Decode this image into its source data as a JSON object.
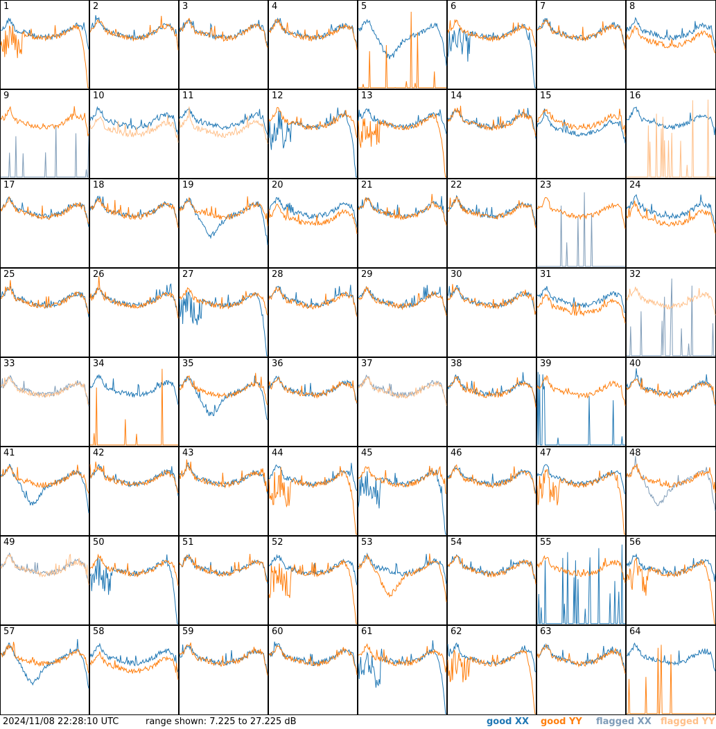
{
  "chart_data": {
    "type": "line",
    "layout": "grid of spectra, 8 columns x 8 rows",
    "series_legend": [
      {
        "name": "good XX",
        "color": "#1f77b4"
      },
      {
        "name": "good YY",
        "color": "#ff7f0e"
      },
      {
        "name": "flagged XX",
        "color": "#7f9cb8"
      },
      {
        "name": "flagged YY",
        "color": "#ffc08a"
      }
    ],
    "y_range_db": [
      7.225,
      27.225
    ],
    "panels": [
      {
        "label": "1",
        "xx": "good",
        "yy": "good",
        "xx_shape": "normal",
        "yy_shape": "droop"
      },
      {
        "label": "2",
        "xx": "good",
        "yy": "good",
        "xx_shape": "normal",
        "yy_shape": "normal"
      },
      {
        "label": "3",
        "xx": "good",
        "yy": "good",
        "xx_shape": "normal",
        "yy_shape": "normal"
      },
      {
        "label": "4",
        "xx": "good",
        "yy": "good",
        "xx_shape": "normal",
        "yy_shape": "normal"
      },
      {
        "label": "5",
        "xx": "good",
        "yy": "good",
        "xx_shape": "dip",
        "yy_shape": "dead"
      },
      {
        "label": "6",
        "xx": "good",
        "yy": "good",
        "xx_shape": "droop",
        "yy_shape": "normal"
      },
      {
        "label": "7",
        "xx": "good",
        "yy": "good",
        "xx_shape": "normal",
        "yy_shape": "normal"
      },
      {
        "label": "8",
        "xx": "good",
        "yy": "good",
        "xx_shape": "normal",
        "yy_shape": "low"
      },
      {
        "label": "9",
        "xx": "flagged",
        "yy": "good",
        "xx_shape": "dead",
        "yy_shape": "normal"
      },
      {
        "label": "10",
        "xx": "good",
        "yy": "flagged",
        "xx_shape": "normal",
        "yy_shape": "low"
      },
      {
        "label": "11",
        "xx": "good",
        "yy": "flagged",
        "xx_shape": "normal",
        "yy_shape": "low"
      },
      {
        "label": "12",
        "xx": "good",
        "yy": "good",
        "xx_shape": "droop",
        "yy_shape": "normal"
      },
      {
        "label": "13",
        "xx": "good",
        "yy": "good",
        "xx_shape": "normal",
        "yy_shape": "droop"
      },
      {
        "label": "14",
        "xx": "good",
        "yy": "good",
        "xx_shape": "normal",
        "yy_shape": "normal"
      },
      {
        "label": "15",
        "xx": "good",
        "yy": "good",
        "xx_shape": "low",
        "yy_shape": "normal"
      },
      {
        "label": "16",
        "xx": "good",
        "yy": "flagged",
        "xx_shape": "normal",
        "yy_shape": "dead"
      },
      {
        "label": "17",
        "xx": "good",
        "yy": "good",
        "xx_shape": "normal",
        "yy_shape": "normal"
      },
      {
        "label": "18",
        "xx": "good",
        "yy": "good",
        "xx_shape": "normal",
        "yy_shape": "normal"
      },
      {
        "label": "19",
        "xx": "good",
        "yy": "good",
        "xx_shape": "dip",
        "yy_shape": "normal"
      },
      {
        "label": "20",
        "xx": "good",
        "yy": "good",
        "xx_shape": "normal",
        "yy_shape": "low"
      },
      {
        "label": "21",
        "xx": "good",
        "yy": "good",
        "xx_shape": "normal",
        "yy_shape": "normal"
      },
      {
        "label": "22",
        "xx": "good",
        "yy": "good",
        "xx_shape": "normal",
        "yy_shape": "normal"
      },
      {
        "label": "23",
        "xx": "flagged",
        "yy": "good",
        "xx_shape": "dead",
        "yy_shape": "normal"
      },
      {
        "label": "24",
        "xx": "good",
        "yy": "good",
        "xx_shape": "normal",
        "yy_shape": "low"
      },
      {
        "label": "25",
        "xx": "good",
        "yy": "good",
        "xx_shape": "normal",
        "yy_shape": "normal"
      },
      {
        "label": "26",
        "xx": "good",
        "yy": "good",
        "xx_shape": "normal",
        "yy_shape": "normal"
      },
      {
        "label": "27",
        "xx": "good",
        "yy": "good",
        "xx_shape": "droop",
        "yy_shape": "normal"
      },
      {
        "label": "28",
        "xx": "good",
        "yy": "good",
        "xx_shape": "normal",
        "yy_shape": "normal"
      },
      {
        "label": "29",
        "xx": "good",
        "yy": "good",
        "xx_shape": "normal",
        "yy_shape": "normal"
      },
      {
        "label": "30",
        "xx": "good",
        "yy": "good",
        "xx_shape": "normal",
        "yy_shape": "normal"
      },
      {
        "label": "31",
        "xx": "good",
        "yy": "good",
        "xx_shape": "normal",
        "yy_shape": "low"
      },
      {
        "label": "32",
        "xx": "flagged",
        "yy": "flagged",
        "xx_shape": "dead",
        "yy_shape": "normal"
      },
      {
        "label": "33",
        "xx": "flagged",
        "yy": "flagged",
        "xx_shape": "normal",
        "yy_shape": "normal"
      },
      {
        "label": "34",
        "xx": "good",
        "yy": "good",
        "xx_shape": "normal",
        "yy_shape": "dead"
      },
      {
        "label": "35",
        "xx": "good",
        "yy": "good",
        "xx_shape": "dip",
        "yy_shape": "normal"
      },
      {
        "label": "36",
        "xx": "good",
        "yy": "good",
        "xx_shape": "normal",
        "yy_shape": "normal"
      },
      {
        "label": "37",
        "xx": "flagged",
        "yy": "flagged",
        "xx_shape": "normal",
        "yy_shape": "normal"
      },
      {
        "label": "38",
        "xx": "good",
        "yy": "good",
        "xx_shape": "normal",
        "yy_shape": "normal"
      },
      {
        "label": "39",
        "xx": "good",
        "yy": "good",
        "xx_shape": "dead",
        "yy_shape": "normal"
      },
      {
        "label": "40",
        "xx": "good",
        "yy": "good",
        "xx_shape": "normal",
        "yy_shape": "normal"
      },
      {
        "label": "41",
        "xx": "good",
        "yy": "good",
        "xx_shape": "dip",
        "yy_shape": "normal"
      },
      {
        "label": "42",
        "xx": "good",
        "yy": "good",
        "xx_shape": "normal",
        "yy_shape": "normal"
      },
      {
        "label": "43",
        "xx": "good",
        "yy": "good",
        "xx_shape": "normal",
        "yy_shape": "normal"
      },
      {
        "label": "44",
        "xx": "good",
        "yy": "good",
        "xx_shape": "normal",
        "yy_shape": "droop"
      },
      {
        "label": "45",
        "xx": "good",
        "yy": "good",
        "xx_shape": "droop",
        "yy_shape": "normal"
      },
      {
        "label": "46",
        "xx": "good",
        "yy": "good",
        "xx_shape": "normal",
        "yy_shape": "normal"
      },
      {
        "label": "47",
        "xx": "good",
        "yy": "good",
        "xx_shape": "normal",
        "yy_shape": "droop"
      },
      {
        "label": "48",
        "xx": "flagged",
        "yy": "good",
        "xx_shape": "dip",
        "yy_shape": "normal"
      },
      {
        "label": "49",
        "xx": "flagged",
        "yy": "flagged",
        "xx_shape": "normal",
        "yy_shape": "normal"
      },
      {
        "label": "50",
        "xx": "good",
        "yy": "good",
        "xx_shape": "droop",
        "yy_shape": "normal"
      },
      {
        "label": "51",
        "xx": "good",
        "yy": "good",
        "xx_shape": "normal",
        "yy_shape": "normal"
      },
      {
        "label": "52",
        "xx": "good",
        "yy": "good",
        "xx_shape": "normal",
        "yy_shape": "droop"
      },
      {
        "label": "53",
        "xx": "good",
        "yy": "good",
        "xx_shape": "normal",
        "yy_shape": "dip"
      },
      {
        "label": "54",
        "xx": "good",
        "yy": "good",
        "xx_shape": "normal",
        "yy_shape": "normal"
      },
      {
        "label": "55",
        "xx": "good",
        "yy": "good",
        "xx_shape": "dead",
        "yy_shape": "normal"
      },
      {
        "label": "56",
        "xx": "good",
        "yy": "good",
        "xx_shape": "normal",
        "yy_shape": "droop"
      },
      {
        "label": "57",
        "xx": "good",
        "yy": "good",
        "xx_shape": "dip",
        "yy_shape": "normal"
      },
      {
        "label": "58",
        "xx": "good",
        "yy": "good",
        "xx_shape": "normal",
        "yy_shape": "low"
      },
      {
        "label": "59",
        "xx": "good",
        "yy": "good",
        "xx_shape": "normal",
        "yy_shape": "normal"
      },
      {
        "label": "60",
        "xx": "good",
        "yy": "good",
        "xx_shape": "normal",
        "yy_shape": "normal"
      },
      {
        "label": "61",
        "xx": "good",
        "yy": "good",
        "xx_shape": "droop",
        "yy_shape": "normal"
      },
      {
        "label": "62",
        "xx": "good",
        "yy": "good",
        "xx_shape": "normal",
        "yy_shape": "droop"
      },
      {
        "label": "63",
        "xx": "good",
        "yy": "good",
        "xx_shape": "normal",
        "yy_shape": "normal"
      },
      {
        "label": "64",
        "xx": "good",
        "yy": "good",
        "xx_shape": "normal",
        "yy_shape": "dead"
      }
    ]
  },
  "footer": {
    "timestamp": "2024/11/08 22:28:10 UTC",
    "range_text": "range shown: 7.225 to 27.225 dB",
    "legend": {
      "good_xx": "good XX",
      "good_yy": "good YY",
      "flagged_xx": "flagged XX",
      "flagged_yy": "flagged YY"
    }
  },
  "colors": {
    "good_xx": "#1f77b4",
    "good_yy": "#ff7f0e",
    "flagged_xx": "#7f9cb8",
    "flagged_yy": "#ffc08a"
  }
}
